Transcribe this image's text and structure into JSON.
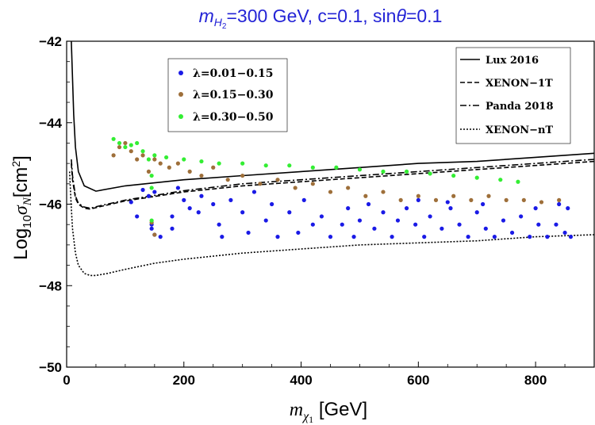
{
  "chart_data": {
    "type": "scatter",
    "title": "m_H2=300 GeV, c=0.1, sinθ=0.1",
    "title_parts": {
      "m": "m",
      "sub": "H",
      "subsub": "2",
      "rest": "=300 GeV, c=0.1, sin",
      "theta": "θ",
      "tail": "=0.1"
    },
    "xlabel": "m_χ1 [GeV]",
    "xlabel_parts": {
      "m": "m",
      "chi": "χ",
      "one": "1",
      "unit": " [GeV]"
    },
    "ylabel": "Log10 σN [cm²]",
    "ylabel_parts": {
      "log": "Log",
      "ten": "10",
      "sigma": "σ",
      "n": "N",
      "unit": "[cm",
      "sq": "2",
      "close": "]"
    },
    "xlim": [
      0,
      900
    ],
    "ylim": [
      -50,
      -42
    ],
    "xticks": [
      0,
      200,
      400,
      600,
      800
    ],
    "xtick_labels": [
      "0",
      "200",
      "400",
      "600",
      "800"
    ],
    "yticks": [
      -50,
      -48,
      -46,
      -44,
      -42
    ],
    "ytick_labels": [
      "−50",
      "−48",
      "−46",
      "−44",
      "−42"
    ],
    "legend_placement": "top-left",
    "series": [
      {
        "name": "λ=0.01−0.15",
        "color": "#1a1ae6",
        "points": [
          [
            150,
            -46.75
          ],
          [
            145,
            -46.6
          ],
          [
            145,
            -46.5
          ],
          [
            110,
            -45.95
          ],
          [
            130,
            -45.65
          ],
          [
            140,
            -45.8
          ],
          [
            150,
            -45.7
          ],
          [
            120,
            -46.3
          ],
          [
            180,
            -46.3
          ],
          [
            200,
            -45.9
          ],
          [
            210,
            -46.1
          ],
          [
            160,
            -46.8
          ],
          [
            180,
            -46.6
          ],
          [
            190,
            -45.6
          ],
          [
            225,
            -46.2
          ],
          [
            230,
            -45.8
          ],
          [
            250,
            -46.0
          ],
          [
            260,
            -46.5
          ],
          [
            265,
            -46.8
          ],
          [
            280,
            -45.9
          ],
          [
            300,
            -46.2
          ],
          [
            310,
            -46.7
          ],
          [
            320,
            -45.7
          ],
          [
            340,
            -46.4
          ],
          [
            350,
            -46.0
          ],
          [
            360,
            -46.8
          ],
          [
            380,
            -46.2
          ],
          [
            395,
            -46.7
          ],
          [
            405,
            -45.9
          ],
          [
            420,
            -46.5
          ],
          [
            435,
            -46.3
          ],
          [
            450,
            -46.8
          ],
          [
            470,
            -46.5
          ],
          [
            480,
            -46.1
          ],
          [
            490,
            -46.8
          ],
          [
            500,
            -46.4
          ],
          [
            515,
            -46.0
          ],
          [
            525,
            -46.6
          ],
          [
            540,
            -46.2
          ],
          [
            555,
            -46.8
          ],
          [
            565,
            -46.4
          ],
          [
            580,
            -46.1
          ],
          [
            595,
            -46.5
          ],
          [
            610,
            -46.8
          ],
          [
            620,
            -46.3
          ],
          [
            640,
            -46.6
          ],
          [
            655,
            -46.1
          ],
          [
            670,
            -46.5
          ],
          [
            685,
            -46.8
          ],
          [
            700,
            -46.2
          ],
          [
            715,
            -46.6
          ],
          [
            730,
            -46.8
          ],
          [
            745,
            -46.4
          ],
          [
            760,
            -46.7
          ],
          [
            775,
            -46.3
          ],
          [
            790,
            -46.8
          ],
          [
            805,
            -46.5
          ],
          [
            820,
            -46.8
          ],
          [
            835,
            -46.5
          ],
          [
            850,
            -46.7
          ],
          [
            855,
            -46.1
          ],
          [
            860,
            -46.8
          ],
          [
            600,
            -45.9
          ],
          [
            650,
            -45.95
          ],
          [
            710,
            -46.0
          ],
          [
            800,
            -46.1
          ],
          [
            840,
            -46.0
          ]
        ]
      },
      {
        "name": "λ=0.15−0.30",
        "color": "#9e6f3a",
        "points": [
          [
            80,
            -44.8
          ],
          [
            90,
            -44.6
          ],
          [
            100,
            -44.5
          ],
          [
            110,
            -44.7
          ],
          [
            120,
            -44.9
          ],
          [
            130,
            -44.8
          ],
          [
            140,
            -45.2
          ],
          [
            150,
            -44.9
          ],
          [
            160,
            -45.0
          ],
          [
            175,
            -45.1
          ],
          [
            190,
            -45.0
          ],
          [
            210,
            -45.2
          ],
          [
            230,
            -45.3
          ],
          [
            250,
            -45.1
          ],
          [
            275,
            -45.4
          ],
          [
            300,
            -45.3
          ],
          [
            330,
            -45.5
          ],
          [
            360,
            -45.4
          ],
          [
            390,
            -45.6
          ],
          [
            420,
            -45.5
          ],
          [
            450,
            -45.7
          ],
          [
            480,
            -45.6
          ],
          [
            510,
            -45.8
          ],
          [
            540,
            -45.7
          ],
          [
            570,
            -45.9
          ],
          [
            600,
            -45.8
          ],
          [
            630,
            -45.9
          ],
          [
            660,
            -45.8
          ],
          [
            690,
            -45.9
          ],
          [
            720,
            -45.8
          ],
          [
            750,
            -45.9
          ],
          [
            780,
            -45.9
          ],
          [
            810,
            -45.95
          ],
          [
            840,
            -45.9
          ],
          [
            150,
            -46.75
          ],
          [
            145,
            -46.45
          ]
        ]
      },
      {
        "name": "λ=0.30−0.50",
        "color": "#33ee33",
        "points": [
          [
            80,
            -44.4
          ],
          [
            90,
            -44.5
          ],
          [
            100,
            -44.6
          ],
          [
            110,
            -44.55
          ],
          [
            120,
            -44.5
          ],
          [
            130,
            -44.7
          ],
          [
            140,
            -44.9
          ],
          [
            145,
            -45.3
          ],
          [
            145,
            -45.6
          ],
          [
            145,
            -46.4
          ],
          [
            150,
            -44.8
          ],
          [
            170,
            -44.85
          ],
          [
            200,
            -44.9
          ],
          [
            230,
            -44.95
          ],
          [
            260,
            -45.0
          ],
          [
            300,
            -45.0
          ],
          [
            340,
            -45.05
          ],
          [
            380,
            -45.05
          ],
          [
            420,
            -45.1
          ],
          [
            460,
            -45.1
          ],
          [
            500,
            -45.15
          ],
          [
            540,
            -45.2
          ],
          [
            580,
            -45.2
          ],
          [
            620,
            -45.25
          ],
          [
            660,
            -45.3
          ],
          [
            700,
            -45.35
          ],
          [
            740,
            -45.4
          ],
          [
            770,
            -45.45
          ]
        ]
      }
    ],
    "lines": [
      {
        "name": "Lux 2016",
        "style": "solid",
        "x": [
          8,
          12,
          15,
          20,
          30,
          50,
          100,
          200,
          300,
          400,
          500,
          600,
          700,
          800,
          900
        ],
        "y": [
          -42.0,
          -43.8,
          -44.6,
          -45.2,
          -45.55,
          -45.68,
          -45.55,
          -45.4,
          -45.3,
          -45.2,
          -45.1,
          -45.0,
          -44.95,
          -44.85,
          -44.75
        ]
      },
      {
        "name": "XENON−1T",
        "style": "dashed",
        "x": [
          8,
          10,
          15,
          20,
          30,
          40,
          60,
          100,
          200,
          300,
          400,
          500,
          600,
          700,
          800,
          900
        ],
        "y": [
          -45.0,
          -45.4,
          -45.85,
          -46.0,
          -46.1,
          -46.12,
          -46.05,
          -45.92,
          -45.7,
          -45.55,
          -45.45,
          -45.35,
          -45.25,
          -45.15,
          -45.05,
          -44.95
        ]
      },
      {
        "name": "Panda 2018",
        "style": "dashdot",
        "x": [
          8,
          10,
          15,
          20,
          30,
          40,
          60,
          100,
          200,
          300,
          400,
          500,
          600,
          700,
          800,
          900
        ],
        "y": [
          -44.9,
          -45.3,
          -45.8,
          -45.98,
          -46.07,
          -46.1,
          -46.03,
          -45.9,
          -45.67,
          -45.5,
          -45.4,
          -45.3,
          -45.2,
          -45.1,
          -45.0,
          -44.9
        ]
      },
      {
        "name": "XENON−nT",
        "style": "dotted",
        "x": [
          5,
          8,
          10,
          15,
          20,
          30,
          40,
          50,
          70,
          100,
          150,
          200,
          300,
          400,
          500,
          600,
          700,
          800,
          900
        ],
        "y": [
          -45.2,
          -46.1,
          -46.6,
          -47.2,
          -47.5,
          -47.7,
          -47.75,
          -47.75,
          -47.7,
          -47.6,
          -47.45,
          -47.35,
          -47.2,
          -47.1,
          -47.0,
          -46.95,
          -46.9,
          -46.8,
          -46.75
        ]
      }
    ]
  }
}
